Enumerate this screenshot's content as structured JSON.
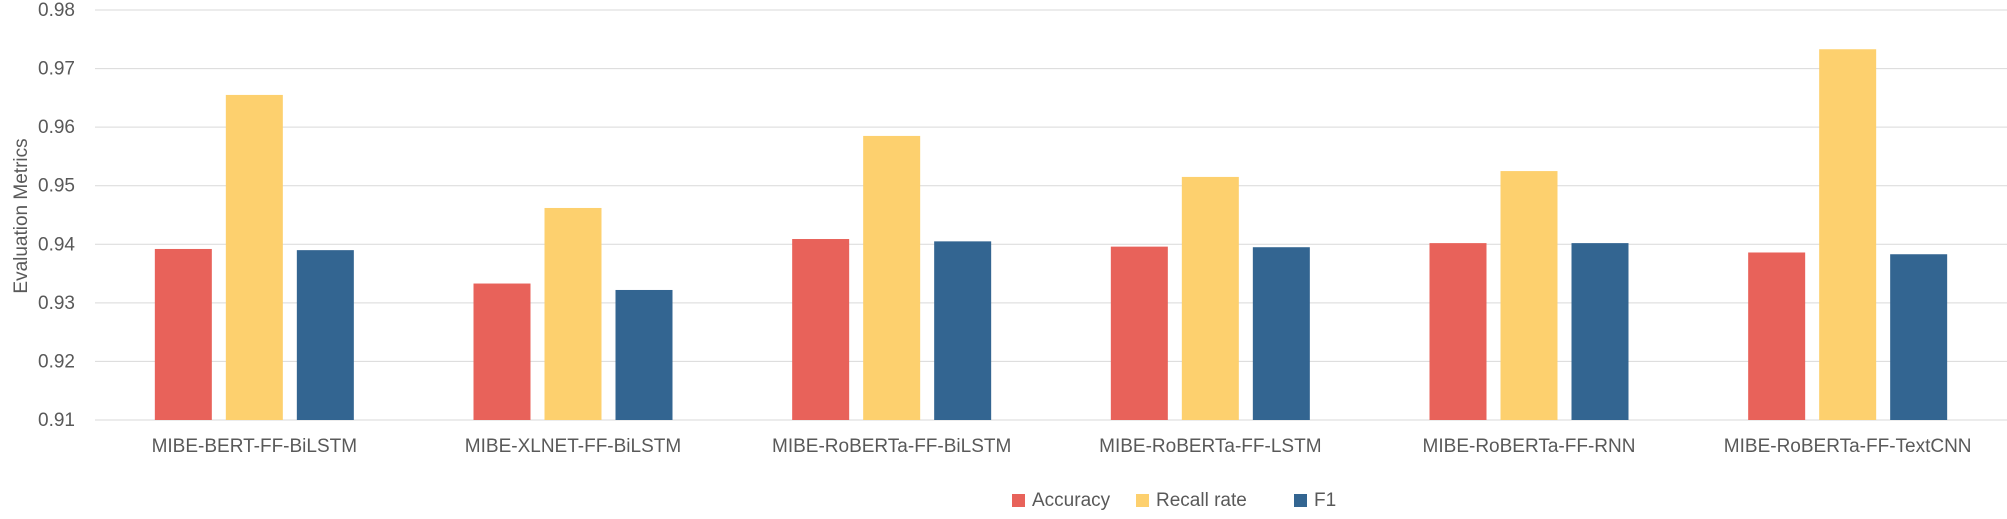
{
  "chart_data": {
    "type": "bar",
    "title": "",
    "xlabel": "",
    "ylabel": "Evaluation Metrics",
    "ylim": [
      0.91,
      0.98
    ],
    "yticks": [
      "0.91",
      "0.92",
      "0.93",
      "0.94",
      "0.95",
      "0.96",
      "0.97",
      "0.98"
    ],
    "grid": true,
    "legend_position": "bottom",
    "categories": [
      "MIBE-BERT-FF-BiLSTM",
      "MIBE-XLNET-FF-BiLSTM",
      "MIBE-RoBERTa-FF-BiLSTM",
      "MIBE-RoBERTa-FF-LSTM",
      "MIBE-RoBERTa-FF-RNN",
      "MIBE-RoBERTa-FF-TextCNN"
    ],
    "series": [
      {
        "name": "Accuracy",
        "color": "#E8625A",
        "values": [
          0.9392,
          0.9333,
          0.9409,
          0.9396,
          0.9402,
          0.9386
        ]
      },
      {
        "name": "Recall rate",
        "color": "#FDD06E",
        "values": [
          0.9655,
          0.9462,
          0.9585,
          0.9515,
          0.9525,
          0.9733
        ]
      },
      {
        "name": "F1",
        "color": "#336591",
        "values": [
          0.939,
          0.9322,
          0.9405,
          0.9395,
          0.9402,
          0.9383
        ]
      }
    ]
  }
}
